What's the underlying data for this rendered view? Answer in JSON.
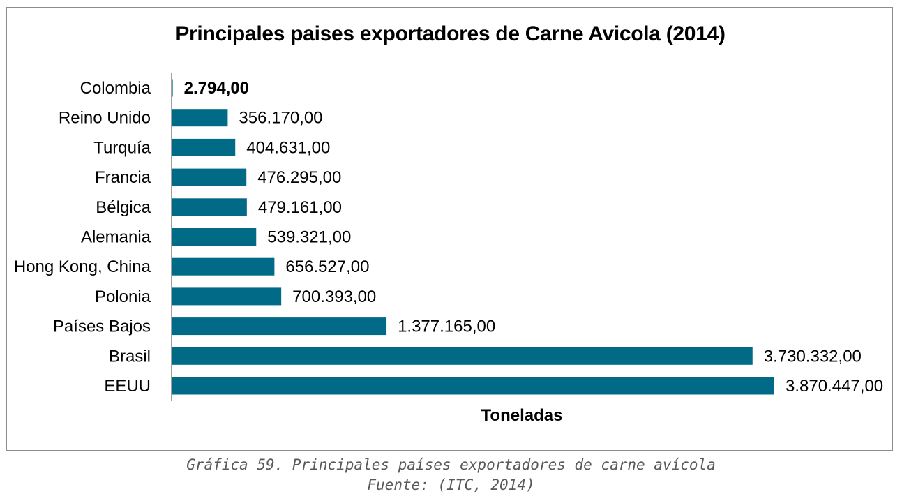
{
  "chart_data": {
    "type": "bar",
    "orientation": "horizontal",
    "title": "Principales paises exportadores de Carne Avicola (2014)",
    "xlabel": "Toneladas",
    "ylabel": "",
    "categories": [
      "Colombia",
      "Reino Unido",
      "Turquía",
      "Francia",
      "Bélgica",
      "Alemania",
      "Hong Kong, China",
      "Polonia",
      "Países Bajos",
      "Brasil",
      "EEUU"
    ],
    "values": [
      2794,
      356170,
      404631,
      476295,
      479161,
      539321,
      656527,
      700393,
      1377165,
      3730332,
      3870447
    ],
    "value_labels": [
      "2.794,00",
      "356.170,00",
      "404.631,00",
      "476.295,00",
      "479.161,00",
      "539.321,00",
      "656.527,00",
      "700.393,00",
      "1.377.165,00",
      "3.730.332,00",
      "3.870.447,00"
    ],
    "highlight_label": "Colombia",
    "bar_color": "#006a87",
    "grid": false,
    "legend": "none"
  },
  "caption": {
    "line1": "Gráfica 59. Principales países exportadores de carne avícola",
    "line2": "Fuente: (ITC, 2014)"
  }
}
